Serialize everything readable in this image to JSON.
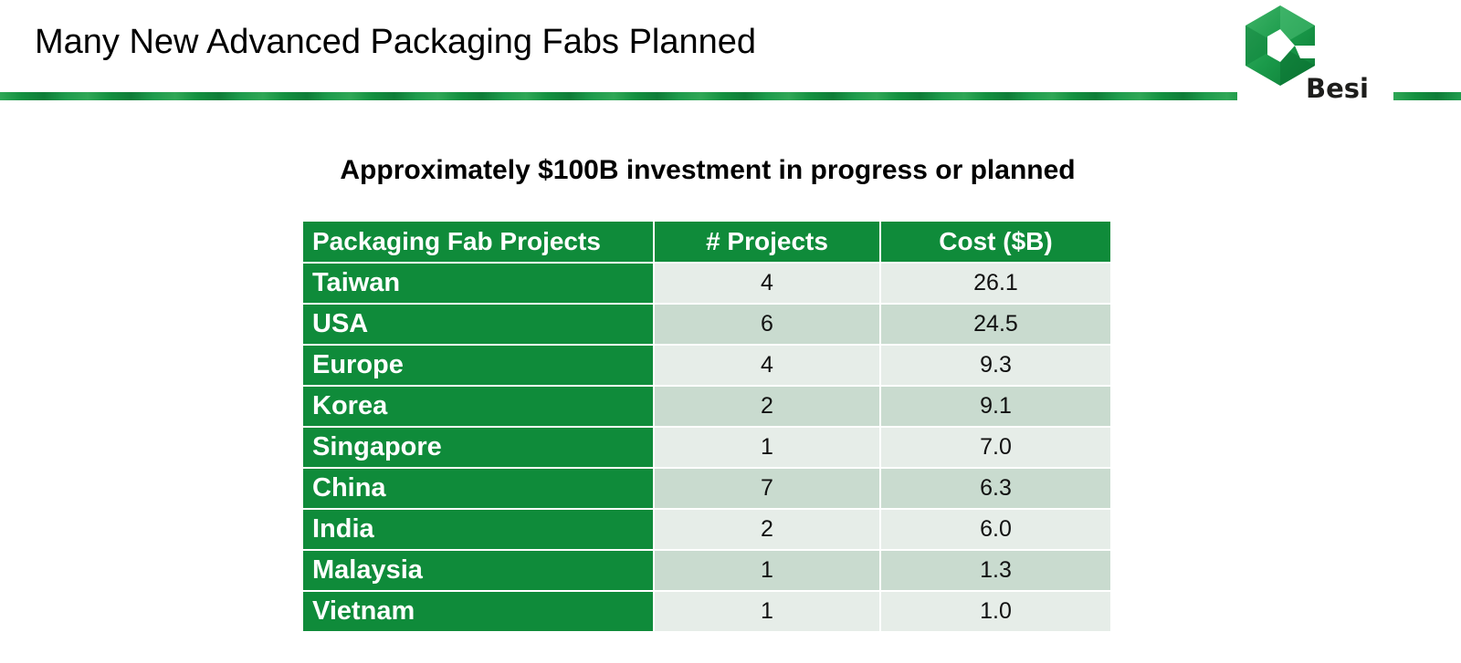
{
  "slide": {
    "title": "Many New Advanced Packaging Fabs Planned",
    "logo_text": "Besi",
    "logo_icon": "besi-hexagon-logo-icon",
    "subtitle": "Approximately $100B investment in progress or planned"
  },
  "colors": {
    "brand_green": "#0f8b3a",
    "row_light": "#e6ede8",
    "row_dark": "#c9dbcf"
  },
  "table": {
    "headers": [
      "Packaging Fab Projects",
      "# Projects",
      "Cost ($B)"
    ],
    "rows": [
      {
        "region": "Taiwan",
        "projects": "4",
        "cost": "26.1"
      },
      {
        "region": "USA",
        "projects": "6",
        "cost": "24.5"
      },
      {
        "region": "Europe",
        "projects": "4",
        "cost": "9.3"
      },
      {
        "region": "Korea",
        "projects": "2",
        "cost": "9.1"
      },
      {
        "region": "Singapore",
        "projects": "1",
        "cost": "7.0"
      },
      {
        "region": "China",
        "projects": "7",
        "cost": "6.3"
      },
      {
        "region": "India",
        "projects": "2",
        "cost": "6.0"
      },
      {
        "region": "Malaysia",
        "projects": "1",
        "cost": "1.3"
      },
      {
        "region": "Vietnam",
        "projects": "1",
        "cost": "1.0"
      }
    ]
  }
}
